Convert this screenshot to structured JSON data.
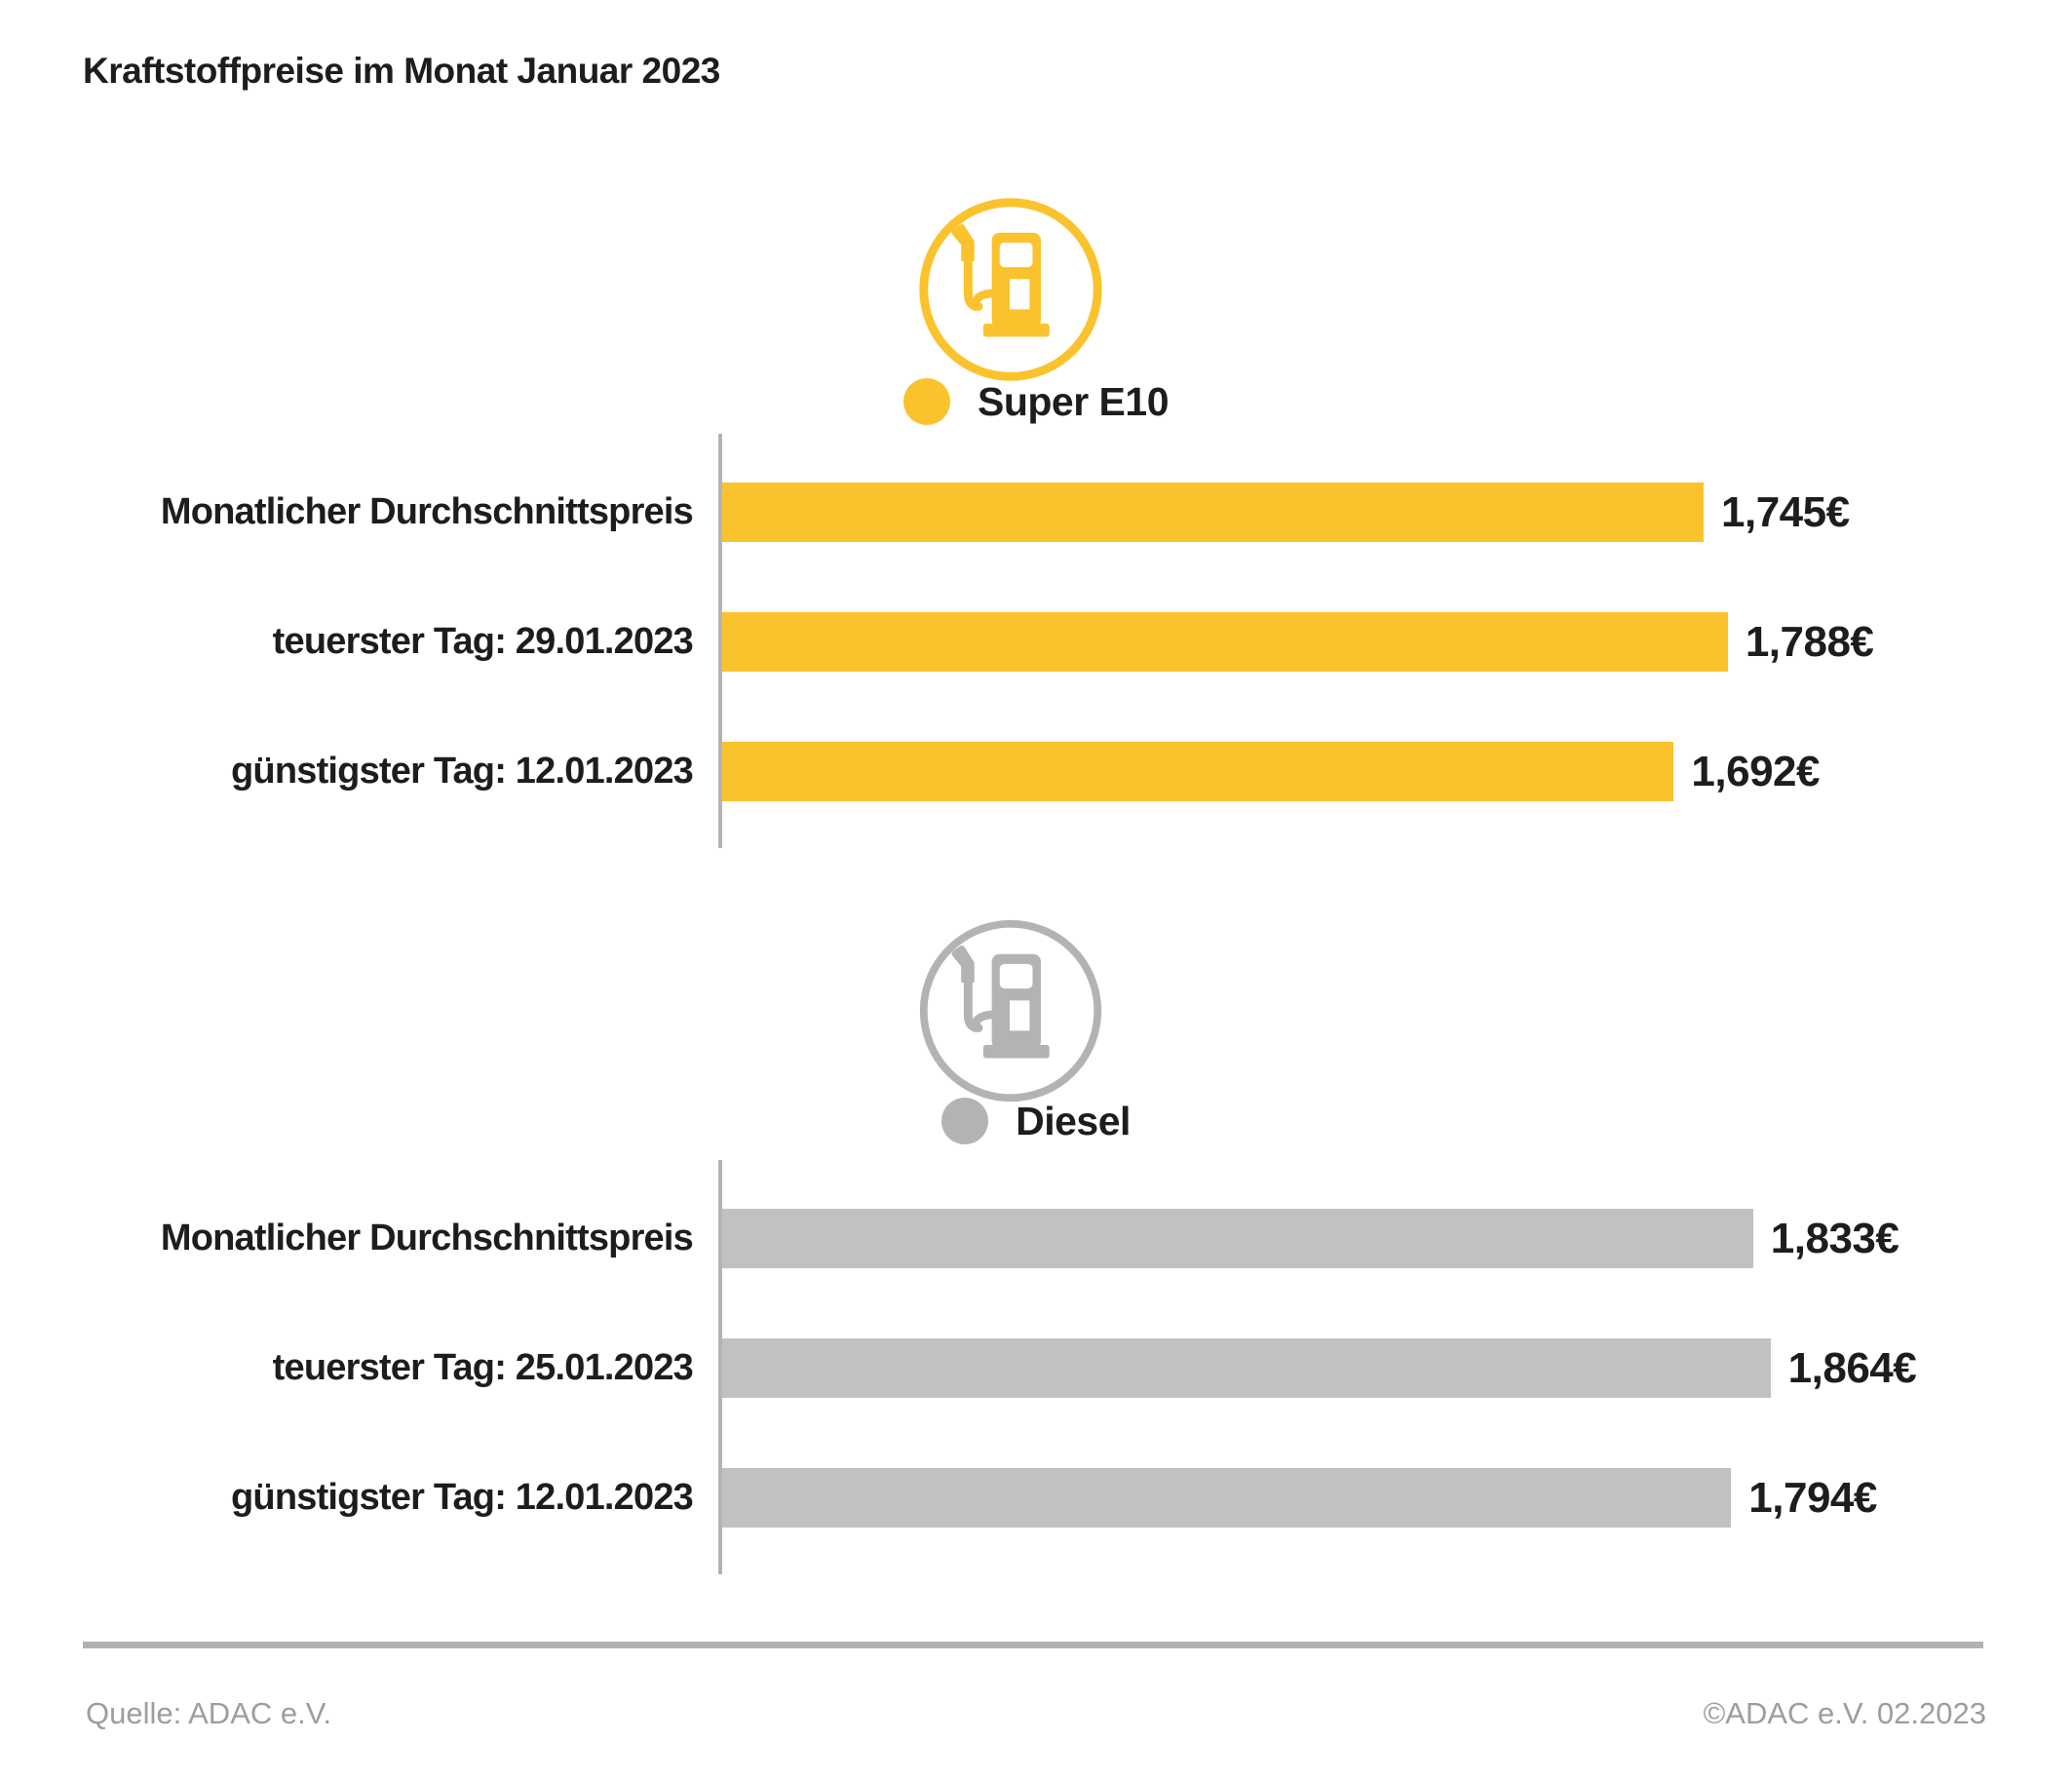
{
  "title": "Kraftstoffpreise im Monat Januar 2023",
  "footer": {
    "source": "Quelle: ADAC e.V.",
    "copyright": "©ADAC e.V. 02.2023"
  },
  "colors": {
    "super_e10_yellow": "#FAC32D",
    "diesel_gray": "#C2C1C1",
    "diesel_icon_gray": "#B3B3B3",
    "axis_gray": "#B5B4B4",
    "text_dark": "#1D1D1B",
    "footer_gray": "#9D9D9C"
  },
  "chart_data": [
    {
      "type": "bar",
      "orientation": "horizontal",
      "title": "Super E10",
      "icon": "fuel-pump-icon",
      "color": "#FAC32D",
      "categories": [
        "Monatlicher Durchschnittspreis",
        "teuerster Tag: 29.01.2023",
        "günstigster Tag: 12.01.2023"
      ],
      "values": [
        1.745,
        1.788,
        1.692
      ],
      "value_labels": [
        "1,745€",
        "1,788€",
        "1,692€"
      ],
      "unit": "€ pro Liter",
      "xlim": [
        0,
        2.4
      ],
      "grid": false,
      "legend_position": "top"
    },
    {
      "type": "bar",
      "orientation": "horizontal",
      "title": "Diesel",
      "icon": "fuel-pump-icon",
      "color": "#C2C1C1",
      "icon_color": "#B3B3B3",
      "categories": [
        "Monatlicher Durchschnittspreis",
        "teuerster Tag: 25.01.2023",
        "günstigster Tag: 12.01.2023"
      ],
      "values": [
        1.833,
        1.864,
        1.794
      ],
      "value_labels": [
        "1,833€",
        "1,864€",
        "1,794€"
      ],
      "unit": "€ pro Liter",
      "xlim": [
        0,
        2.4
      ],
      "grid": false,
      "legend_position": "top"
    }
  ]
}
